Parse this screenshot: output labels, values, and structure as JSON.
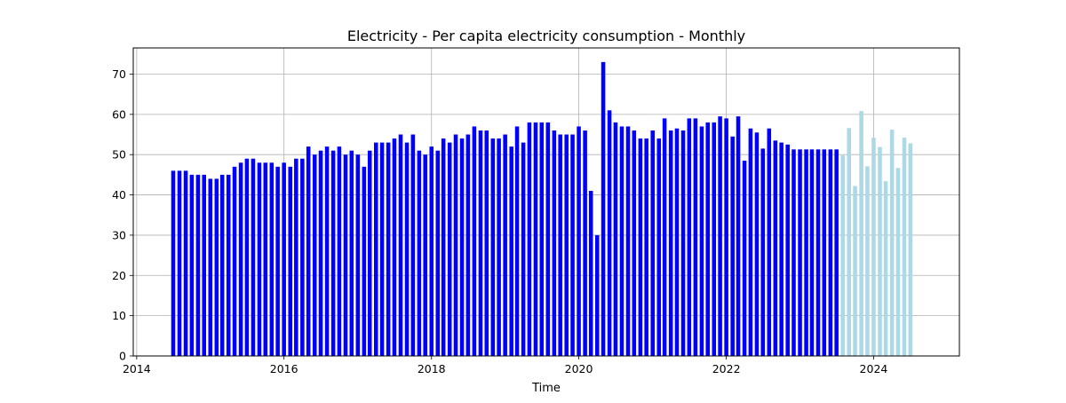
{
  "chart_data": {
    "type": "bar",
    "title": "Electricity - Per capita electricity consumption - Monthly",
    "xlabel": "Time",
    "ylabel": "",
    "x_axis": {
      "type": "date",
      "range": [
        "2013-12-15",
        "2025-03-01"
      ],
      "ticks": [
        "2014",
        "2016",
        "2018",
        "2020",
        "2022",
        "2024"
      ],
      "tick_dates": [
        "2014-01-01",
        "2016-01-01",
        "2018-01-01",
        "2020-01-01",
        "2022-01-01",
        "2024-01-01"
      ]
    },
    "y_axis": {
      "range": [
        0,
        76.5
      ],
      "ticks": [
        "0",
        "10",
        "20",
        "30",
        "40",
        "50",
        "60",
        "70"
      ],
      "tick_values": [
        0,
        10,
        20,
        30,
        40,
        50,
        60,
        70
      ]
    },
    "grid": true,
    "series": [
      {
        "color": "#0000ff",
        "x": [
          "2014-07",
          "2014-08",
          "2014-09",
          "2014-10",
          "2014-11",
          "2014-12",
          "2015-01",
          "2015-02",
          "2015-03",
          "2015-04",
          "2015-05",
          "2015-06",
          "2015-07",
          "2015-08",
          "2015-09",
          "2015-10",
          "2015-11",
          "2015-12",
          "2016-01",
          "2016-02",
          "2016-03",
          "2016-04",
          "2016-05",
          "2016-06",
          "2016-07",
          "2016-08",
          "2016-09",
          "2016-10",
          "2016-11",
          "2016-12",
          "2017-01",
          "2017-02",
          "2017-03",
          "2017-04",
          "2017-05",
          "2017-06",
          "2017-07",
          "2017-08",
          "2017-09",
          "2017-10",
          "2017-11",
          "2017-12",
          "2018-01",
          "2018-02",
          "2018-03",
          "2018-04",
          "2018-05",
          "2018-06",
          "2018-07",
          "2018-08",
          "2018-09",
          "2018-10",
          "2018-11",
          "2018-12",
          "2019-01",
          "2019-02",
          "2019-03",
          "2019-04",
          "2019-05",
          "2019-06",
          "2019-07",
          "2019-08",
          "2019-09",
          "2019-10",
          "2019-11",
          "2019-12",
          "2020-01",
          "2020-02",
          "2020-03",
          "2020-04",
          "2020-05",
          "2020-06",
          "2020-07",
          "2020-08",
          "2020-09",
          "2020-10",
          "2020-11",
          "2020-12",
          "2021-01",
          "2021-02",
          "2021-03",
          "2021-04",
          "2021-05",
          "2021-06",
          "2021-07",
          "2021-08",
          "2021-09",
          "2021-10",
          "2021-11",
          "2021-12",
          "2022-01",
          "2022-02",
          "2022-03",
          "2022-04",
          "2022-05",
          "2022-06",
          "2022-07",
          "2022-08",
          "2022-09",
          "2022-10",
          "2022-11",
          "2022-12",
          "2023-01",
          "2023-02",
          "2023-03",
          "2023-04",
          "2023-05",
          "2023-06",
          "2023-07"
        ],
        "values": [
          46,
          46,
          46,
          45,
          45,
          45,
          44,
          44,
          45,
          45,
          47,
          48,
          49,
          49,
          48,
          48,
          48,
          47,
          48,
          47,
          49,
          49,
          52,
          50,
          51,
          52,
          51,
          52,
          50,
          51,
          50,
          47,
          51,
          53,
          53,
          53,
          54,
          55,
          53,
          55,
          51,
          50,
          52,
          51,
          54,
          53,
          55,
          54,
          55,
          57,
          56,
          56,
          54,
          54,
          55,
          52,
          57,
          53,
          58,
          58,
          58,
          58,
          56,
          55,
          55,
          55,
          57,
          56,
          41,
          30,
          73,
          61,
          58,
          57,
          57,
          56,
          54,
          54,
          56,
          54,
          59,
          56,
          56.5,
          56,
          59,
          59,
          57,
          58,
          58,
          59.5,
          59,
          54.5,
          59.5,
          48.5,
          56.5,
          55.5,
          51.5,
          56.5,
          53.5,
          53,
          52.5,
          51.3,
          51.3,
          51.3,
          51.3,
          51.3,
          51.3,
          51.3,
          51.3
        ]
      },
      {
        "color": "#add8e6",
        "x": [
          "2023-08",
          "2023-09",
          "2023-10",
          "2023-11",
          "2023-12",
          "2024-01",
          "2024-02",
          "2024-03",
          "2024-04",
          "2024-05",
          "2024-06",
          "2024-07",
          "2024-08",
          "2024-09",
          "2024-10"
        ],
        "values": [
          49.8,
          56.6,
          42.2,
          60.8,
          47.1,
          54.2,
          51.9,
          43.4,
          56.2,
          46.7,
          54.2,
          52.8,
          0,
          0,
          0
        ],
        "visible_count": 12
      }
    ]
  }
}
